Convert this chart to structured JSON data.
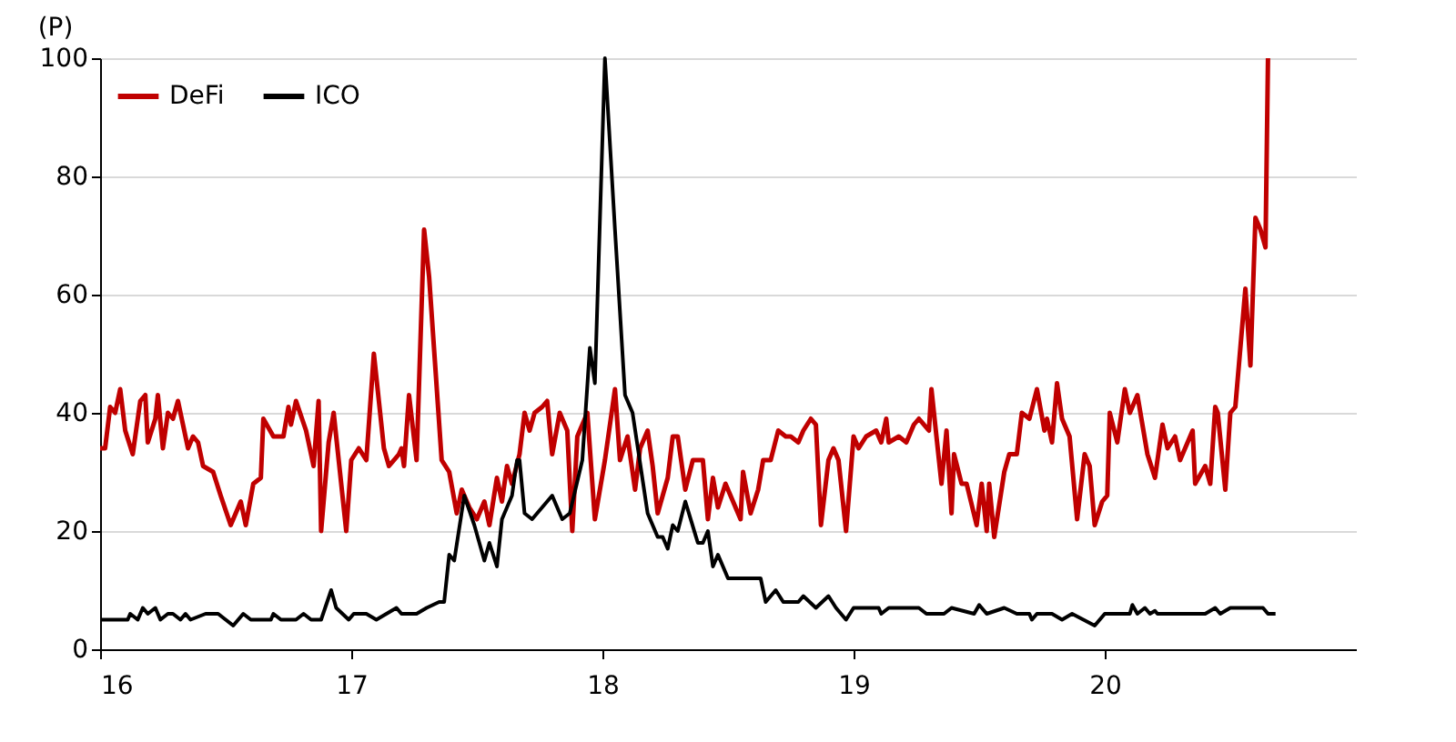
{
  "chart_data": {
    "type": "line",
    "ylabel": "(P)",
    "xlim": [
      16,
      21
    ],
    "xticks": [
      16,
      17,
      18,
      19,
      20
    ],
    "ylim": [
      0,
      100
    ],
    "yticks": [
      0,
      20,
      40,
      60,
      80,
      100
    ],
    "grid": "y",
    "legend": "top left",
    "line_style": "solid",
    "marker": "none",
    "series": [
      {
        "name": "DeFi",
        "color": "#c00000",
        "x": [
          16.0,
          16.02,
          16.04,
          16.06,
          16.08,
          16.1,
          16.13,
          16.16,
          16.18,
          16.19,
          16.22,
          16.23,
          16.25,
          16.27,
          16.29,
          16.31,
          16.35,
          16.37,
          16.39,
          16.41,
          16.45,
          16.48,
          16.52,
          16.56,
          16.58,
          16.61,
          16.64,
          16.65,
          16.69,
          16.73,
          16.75,
          16.76,
          16.78,
          16.82,
          16.85,
          16.87,
          16.88,
          16.91,
          16.93,
          16.98,
          17.0,
          17.03,
          17.06,
          17.09,
          17.13,
          17.15,
          17.19,
          17.2,
          17.21,
          17.23,
          17.26,
          17.29,
          17.31,
          17.36,
          17.39,
          17.42,
          17.44,
          17.47,
          17.5,
          17.53,
          17.55,
          17.58,
          17.6,
          17.62,
          17.64,
          17.67,
          17.69,
          17.71,
          17.73,
          17.76,
          17.78,
          17.8,
          17.83,
          17.86,
          17.88,
          17.9,
          17.94,
          17.97,
          18.01,
          18.05,
          18.07,
          18.1,
          18.13,
          18.15,
          18.18,
          18.2,
          18.22,
          18.26,
          18.28,
          18.3,
          18.33,
          18.36,
          18.4,
          18.42,
          18.44,
          18.46,
          18.49,
          18.52,
          18.55,
          18.56,
          18.59,
          18.62,
          18.64,
          18.67,
          18.7,
          18.73,
          18.75,
          18.78,
          18.8,
          18.83,
          18.85,
          18.87,
          18.9,
          18.92,
          18.94,
          18.97,
          19.0,
          19.02,
          19.05,
          19.09,
          19.11,
          19.13,
          19.14,
          19.18,
          19.21,
          19.24,
          19.26,
          19.3,
          19.31,
          19.35,
          19.37,
          19.39,
          19.4,
          19.43,
          19.45,
          19.49,
          19.51,
          19.53,
          19.54,
          19.56,
          19.6,
          19.62,
          19.65,
          19.67,
          19.7,
          19.73,
          19.76,
          19.77,
          19.79,
          19.81,
          19.83,
          19.86,
          19.89,
          19.92,
          19.94,
          19.96,
          19.99,
          20.01,
          20.02,
          20.05,
          20.08,
          20.1,
          20.13,
          20.17,
          20.2,
          20.23,
          20.25,
          20.28,
          20.3,
          20.35,
          20.36,
          20.4,
          20.42,
          20.44,
          20.45,
          20.48,
          20.5,
          20.52,
          20.56,
          20.58,
          20.6,
          20.62,
          20.64,
          20.65
        ],
        "values": [
          34,
          34,
          41,
          40,
          44,
          37,
          33,
          42,
          43,
          35,
          39,
          43,
          34,
          40,
          39,
          42,
          34,
          36,
          35,
          31,
          30,
          26,
          21,
          25,
          21,
          28,
          29,
          39,
          36,
          36,
          41,
          38,
          42,
          37,
          31,
          42,
          20,
          35,
          40,
          20,
          32,
          34,
          32,
          50,
          34,
          31,
          33,
          34,
          31,
          43,
          32,
          71,
          63,
          32,
          30,
          23,
          27,
          24,
          22,
          25,
          21,
          29,
          25,
          31,
          28,
          33,
          40,
          37,
          40,
          41,
          42,
          33,
          40,
          37,
          20,
          36,
          40,
          22,
          32,
          44,
          32,
          36,
          27,
          34,
          37,
          31,
          23,
          29,
          36,
          36,
          27,
          32,
          32,
          22,
          29,
          24,
          28,
          25,
          22,
          30,
          23,
          27,
          32,
          32,
          37,
          36,
          36,
          35,
          37,
          39,
          38,
          21,
          32,
          34,
          32,
          20,
          36,
          34,
          36,
          37,
          35,
          39,
          35,
          36,
          35,
          38,
          39,
          37,
          44,
          28,
          37,
          23,
          33,
          28,
          28,
          21,
          28,
          20,
          28,
          19,
          30,
          33,
          33,
          40,
          39,
          44,
          37,
          39,
          35,
          45,
          39,
          36,
          22,
          33,
          31,
          21,
          25,
          26,
          40,
          35,
          44,
          40,
          43,
          33,
          29,
          38,
          34,
          36,
          32,
          37,
          28,
          31,
          28,
          41,
          40,
          27,
          40,
          41,
          61,
          48,
          73,
          71,
          68,
          100
        ]
      },
      {
        "name": "ICO",
        "color": "#000000",
        "x": [
          16.0,
          16.11,
          16.12,
          16.15,
          16.17,
          16.19,
          16.22,
          16.24,
          16.27,
          16.29,
          16.32,
          16.34,
          16.36,
          16.42,
          16.47,
          16.53,
          16.57,
          16.6,
          16.68,
          16.69,
          16.72,
          16.78,
          16.81,
          16.84,
          16.88,
          16.92,
          16.94,
          16.99,
          17.01,
          17.06,
          17.1,
          17.14,
          17.18,
          17.2,
          17.26,
          17.3,
          17.35,
          17.37,
          17.39,
          17.41,
          17.45,
          17.49,
          17.53,
          17.55,
          17.58,
          17.6,
          17.64,
          17.66,
          17.67,
          17.69,
          17.72,
          17.76,
          17.8,
          17.84,
          17.87,
          17.92,
          17.95,
          17.97,
          18.01,
          18.05,
          18.09,
          18.12,
          18.18,
          18.22,
          18.24,
          18.26,
          18.28,
          18.3,
          18.33,
          18.38,
          18.4,
          18.42,
          18.44,
          18.46,
          18.5,
          18.63,
          18.65,
          18.69,
          18.72,
          18.78,
          18.8,
          18.85,
          18.9,
          18.93,
          18.97,
          19.0,
          19.1,
          19.11,
          19.14,
          19.26,
          19.29,
          19.36,
          19.39,
          19.48,
          19.5,
          19.53,
          19.6,
          19.65,
          19.7,
          19.71,
          19.73,
          19.79,
          19.83,
          19.87,
          19.96,
          20.0,
          20.1,
          20.11,
          20.13,
          20.16,
          20.18,
          20.2,
          20.21,
          20.4,
          20.44,
          20.46,
          20.5,
          20.63,
          20.65,
          20.68
        ],
        "values": [
          5,
          5,
          6,
          5,
          7,
          6,
          7,
          5,
          6,
          6,
          5,
          6,
          5,
          6,
          6,
          4,
          6,
          5,
          5,
          6,
          5,
          5,
          6,
          5,
          5,
          10,
          7,
          5,
          6,
          6,
          5,
          6,
          7,
          6,
          6,
          7,
          8,
          8,
          16,
          15,
          26,
          21,
          15,
          18,
          14,
          22,
          26,
          32,
          32,
          23,
          22,
          24,
          26,
          22,
          23,
          32,
          51,
          45,
          100,
          71,
          43,
          40,
          23,
          19,
          19,
          17,
          21,
          20,
          25,
          18,
          18,
          20,
          14,
          16,
          12,
          12,
          8,
          10,
          8,
          8,
          9,
          7,
          9,
          7,
          5,
          7,
          7,
          6,
          7,
          7,
          6,
          6,
          7,
          6,
          7.5,
          6,
          7,
          6,
          6,
          5,
          6,
          6,
          5,
          6,
          4,
          6,
          6,
          7.5,
          6,
          7,
          6,
          6.5,
          6,
          6,
          7,
          6,
          7,
          7,
          6,
          6
        ]
      }
    ]
  }
}
